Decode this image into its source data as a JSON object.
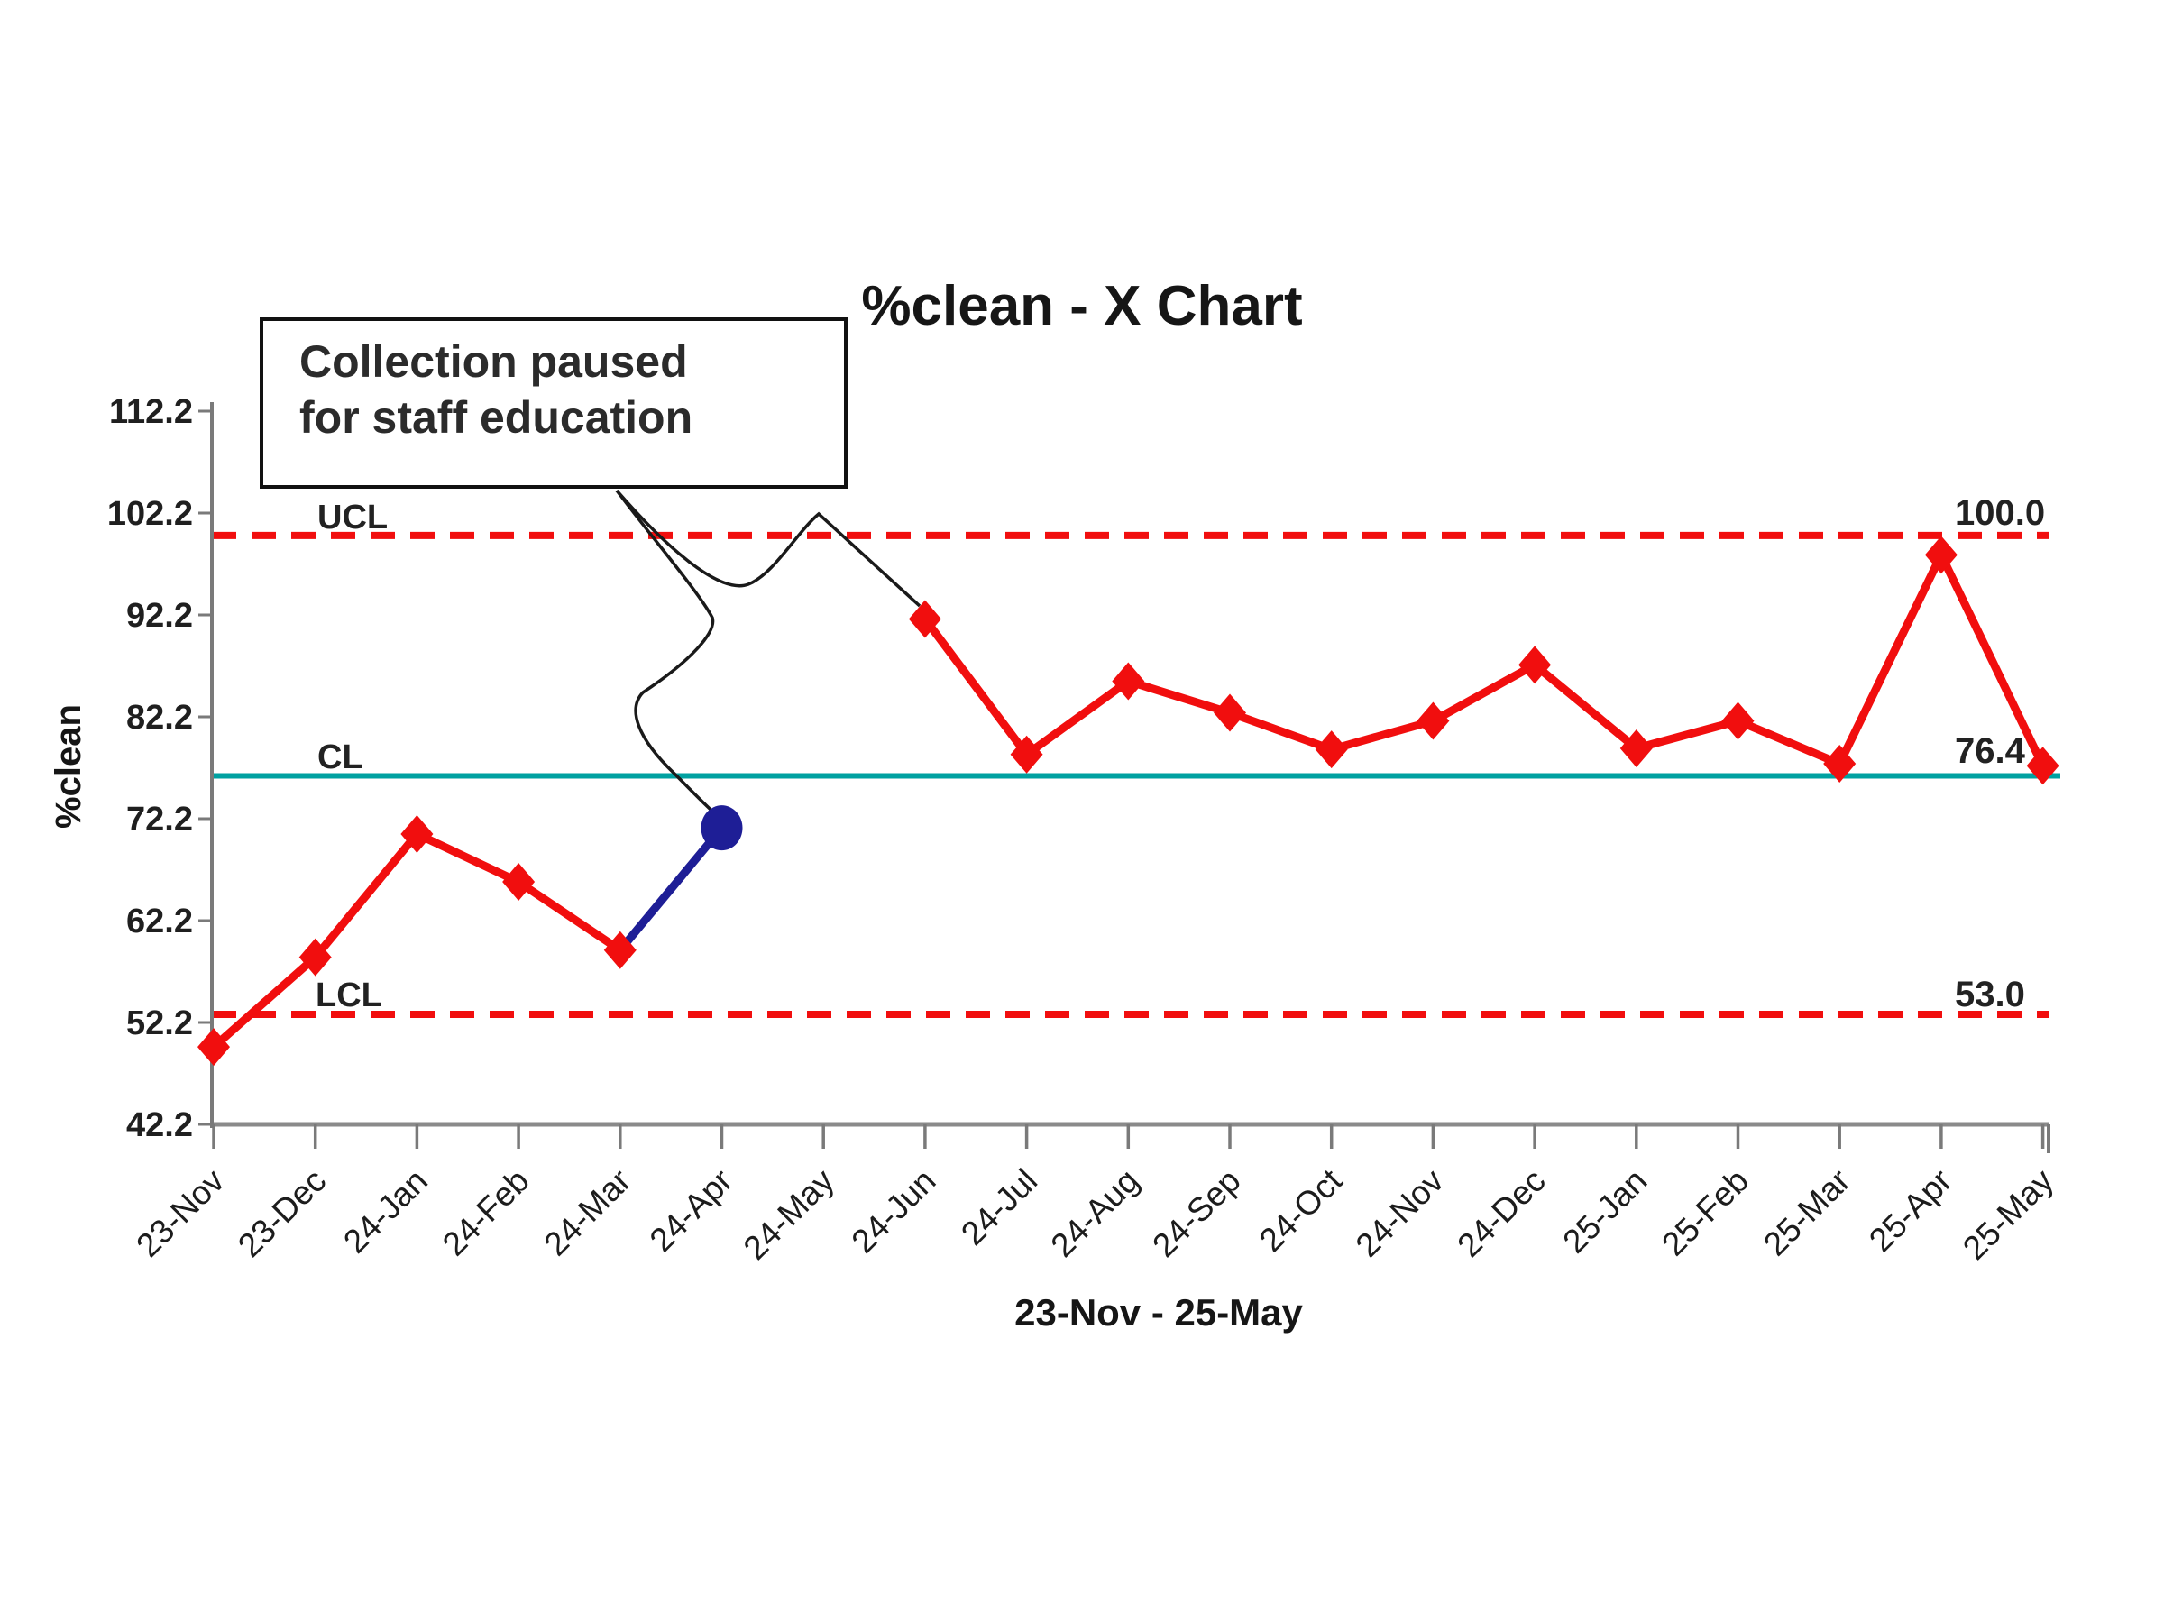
{
  "title": "%clean - X Chart",
  "y_axis_title": "%clean",
  "x_axis_range_label": "23-Nov - 25-May",
  "annotation": {
    "line1": "Collection paused",
    "line2": "for staff education"
  },
  "chart_data": {
    "type": "line",
    "title": "%clean - X Chart",
    "xlabel": "23-Nov - 25-May",
    "ylabel": "%clean",
    "categories": [
      "23-Nov",
      "23-Dec",
      "24-Jan",
      "24-Feb",
      "24-Mar",
      "24-Apr",
      "24-May",
      "24-Jun",
      "24-Jul",
      "24-Aug",
      "24-Sep",
      "24-Oct",
      "24-Nov",
      "24-Dec",
      "25-Jan",
      "25-Feb",
      "25-Mar",
      "25-Apr",
      "25-May"
    ],
    "series": [
      {
        "name": "%clean",
        "values": [
          49.8,
          58.6,
          70.7,
          66.0,
          59.3,
          71.3,
          null,
          91.8,
          78.5,
          85.7,
          82.6,
          79.0,
          81.8,
          87.3,
          79.1,
          81.8,
          77.6,
          98.1,
          77.4
        ]
      }
    ],
    "special_point": {
      "category": "24-Apr",
      "value": 71.3,
      "reason": "Collection paused for staff education"
    },
    "gap_category": "24-May",
    "control_limits": {
      "ucl": 100.0,
      "cl": 76.4,
      "lcl": 53.0
    },
    "control_limit_labels": {
      "ucl": "UCL",
      "cl": "CL",
      "lcl": "LCL"
    },
    "control_limit_value_labels": {
      "ucl": "100.0",
      "cl": "76.4",
      "lcl": "53.0"
    },
    "y_ticks": [
      42.2,
      52.2,
      62.2,
      72.2,
      82.2,
      92.2,
      102.2,
      112.2
    ],
    "ylim": [
      42.2,
      116.5
    ],
    "grid": false,
    "legend": "none",
    "colors": {
      "series": "#f10e0e",
      "control_dashed": "#f10e0e",
      "center_line": "#00a1a1",
      "special_point": "#1e1e96",
      "axis": "#8a8a8a",
      "text": "#262626"
    }
  }
}
